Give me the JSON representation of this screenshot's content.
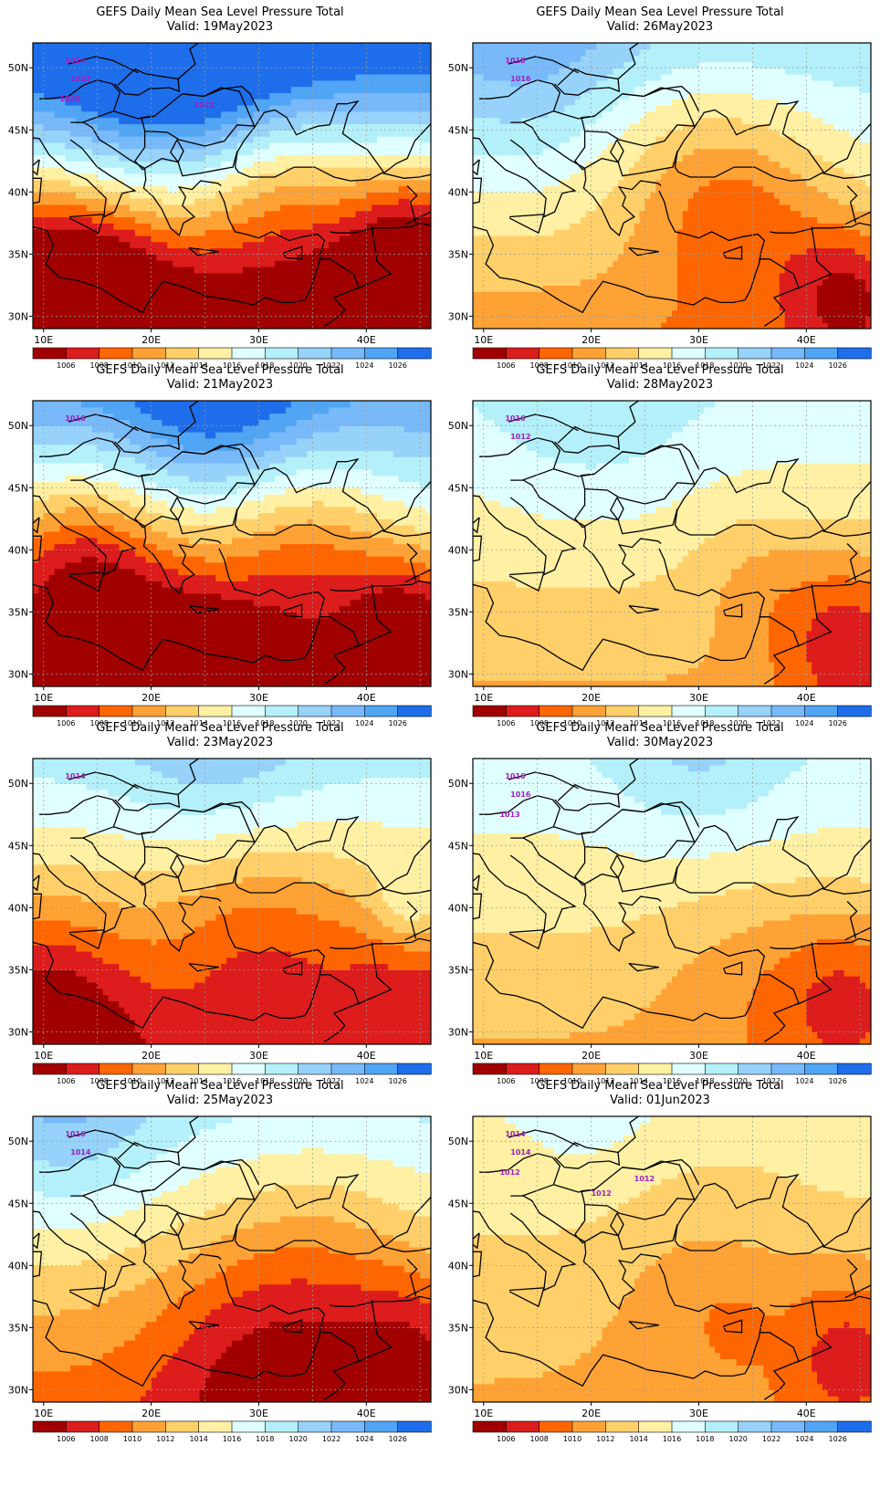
{
  "panels": [
    {
      "title": "GEFS Daily Mean Sea Level Pressure Total",
      "valid": "Valid: 19May2023",
      "contour_labels": [
        "1024",
        "1022",
        "1020",
        "1022"
      ],
      "field": {
        "base": 1014.5,
        "lows": [
          [
            12,
            31.5,
            -9,
            6
          ],
          [
            44,
            32,
            -7,
            5
          ],
          [
            32,
            41,
            -4,
            5
          ],
          [
            44,
            39,
            -3,
            4
          ]
        ],
        "highs": [
          [
            22,
            53,
            9,
            8
          ]
        ],
        "trend": [
          0,
          0.15
        ]
      }
    },
    {
      "title": "GEFS Daily Mean Sea Level Pressure Total",
      "valid": "Valid: 26May2023",
      "contour_labels": [
        "1018",
        "1016"
      ],
      "field": {
        "base": 1015,
        "lows": [
          [
            34,
            39,
            -5,
            6
          ],
          [
            44,
            32,
            -6,
            4
          ],
          [
            26,
            44,
            -2,
            6
          ]
        ],
        "highs": [
          [
            14,
            52,
            4,
            8
          ]
        ],
        "trend": [
          0,
          0.05
        ]
      }
    },
    {
      "title": "GEFS Daily Mean Sea Level Pressure Total",
      "valid": "Valid: 21May2023",
      "contour_labels": [
        "1016"
      ],
      "field": {
        "base": 1014.5,
        "lows": [
          [
            14,
            38,
            -8,
            6
          ],
          [
            24,
            30,
            -7,
            5
          ],
          [
            34,
            40,
            -5,
            6
          ],
          [
            44,
            34,
            -6,
            4
          ]
        ],
        "highs": [
          [
            26,
            53,
            6,
            6
          ]
        ],
        "trend": [
          0,
          0.1
        ]
      }
    },
    {
      "title": "GEFS Daily Mean Sea Level Pressure Total",
      "valid": "Valid: 28May2023",
      "contour_labels": [
        "1016",
        "1012"
      ],
      "field": {
        "base": 1014.5,
        "lows": [
          [
            44,
            33,
            -6,
            5
          ],
          [
            35,
            38,
            -2,
            4
          ]
        ],
        "highs": [
          [
            20,
            52,
            2.5,
            7
          ]
        ],
        "trend": [
          0,
          0.03
        ]
      }
    },
    {
      "title": "GEFS Daily Mean Sea Level Pressure Total",
      "valid": "Valid: 23May2023",
      "contour_labels": [
        "1014"
      ],
      "field": {
        "base": 1013,
        "lows": [
          [
            10,
            31,
            -6,
            6
          ],
          [
            30,
            38,
            -3.5,
            6
          ],
          [
            44,
            35,
            -3,
            5
          ]
        ],
        "highs": [
          [
            44,
            40,
            4,
            2.5
          ],
          [
            26,
            53,
            3,
            6
          ]
        ],
        "trend": [
          0,
          0.06
        ]
      }
    },
    {
      "title": "GEFS Daily Mean Sea Level Pressure Total",
      "valid": "Valid: 30May2023",
      "contour_labels": [
        "1016",
        "1016",
        "1013"
      ],
      "field": {
        "base": 1014.5,
        "lows": [
          [
            44,
            33,
            -5,
            5
          ],
          [
            34,
            35,
            -2,
            6
          ]
        ],
        "highs": [
          [
            30,
            53,
            3,
            6
          ]
        ],
        "trend": [
          0,
          0.03
        ]
      }
    },
    {
      "title": "GEFS Daily Mean Sea Level Pressure Total",
      "valid": "Valid: 25May2023",
      "contour_labels": [
        "1016",
        "1014"
      ],
      "field": {
        "base": 1013.5,
        "lows": [
          [
            30,
            33,
            -5,
            7
          ],
          [
            44,
            33,
            -5,
            5
          ],
          [
            36,
            42,
            -2,
            6
          ]
        ],
        "highs": [
          [
            12,
            52,
            4,
            6
          ]
        ],
        "trend": [
          0,
          0.05
        ]
      }
    },
    {
      "title": "GEFS Daily Mean Sea Level Pressure Total",
      "valid": "Valid: 01Jun2023",
      "contour_labels": [
        "1014",
        "1014",
        "1012",
        "1012",
        "1012"
      ],
      "field": {
        "base": 1013.5,
        "lows": [
          [
            44,
            33,
            -5,
            5
          ],
          [
            30,
            40,
            -2,
            7
          ],
          [
            33,
            35,
            -2,
            2
          ]
        ],
        "highs": [
          [
            20,
            52,
            1.5,
            6
          ]
        ],
        "trend": [
          0,
          0.02
        ]
      }
    }
  ],
  "axes": {
    "lat_labels": [
      "50N",
      "45N",
      "40N",
      "35N",
      "30N"
    ],
    "lon_labels": [
      "10E",
      "20E",
      "30E",
      "40E"
    ],
    "lon_range": [
      9,
      46
    ],
    "lat_range": [
      29,
      52
    ]
  },
  "colorbar": {
    "labels": [
      "1006",
      "1008",
      "1010",
      "1012",
      "1014",
      "1016",
      "1018",
      "1020",
      "1022",
      "1024",
      "1026"
    ],
    "colors": [
      "#a00000",
      "#dd1c1c",
      "#ff6600",
      "#ffa235",
      "#ffd06a",
      "#fff0a4",
      "#e0ffff",
      "#b4f0fa",
      "#96d2fa",
      "#78b9fa",
      "#50a5f5",
      "#1e6eeb"
    ]
  },
  "style": {
    "contour_color": "#a020c0",
    "border_color": "#000000",
    "grid_color": "#9a9a9a"
  }
}
